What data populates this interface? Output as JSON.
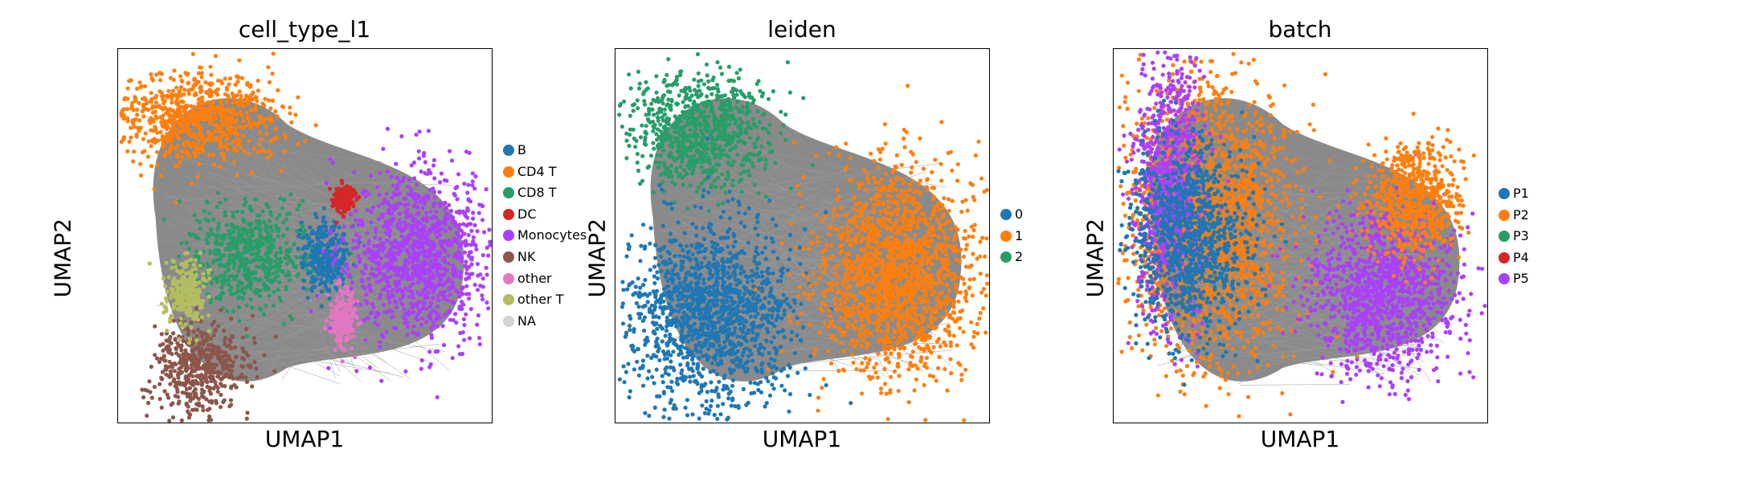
{
  "chart_data": [
    {
      "type": "scatter",
      "title": "cell_type_l1",
      "xlabel": "UMAP1",
      "ylabel": "UMAP2",
      "grid": false,
      "legend_position": "right",
      "categories": [
        "B",
        "CD4 T",
        "CD8 T",
        "DC",
        "Monocytes",
        "NK",
        "other",
        "other T",
        "NA"
      ],
      "colors": [
        "#1f77b4",
        "#ff7f0e",
        "#279e68",
        "#d62728",
        "#aa40fc",
        "#8c564b",
        "#e377c2",
        "#b5bd61",
        "#d3d3d3"
      ],
      "clusters": [
        {
          "category": "CD4 T",
          "center": [
            0.2,
            0.18
          ],
          "spread": [
            0.35,
            0.2
          ]
        },
        {
          "category": "CD8 T",
          "center": [
            0.35,
            0.55
          ],
          "spread": [
            0.25,
            0.2
          ]
        },
        {
          "category": "B",
          "center": [
            0.55,
            0.55
          ],
          "spread": [
            0.1,
            0.15
          ]
        },
        {
          "category": "Monocytes",
          "center": [
            0.8,
            0.55
          ],
          "spread": [
            0.3,
            0.35
          ]
        },
        {
          "category": "NK",
          "center": [
            0.22,
            0.85
          ],
          "spread": [
            0.2,
            0.2
          ]
        },
        {
          "category": "other T",
          "center": [
            0.18,
            0.65
          ],
          "spread": [
            0.08,
            0.15
          ]
        },
        {
          "category": "DC",
          "center": [
            0.6,
            0.4
          ],
          "spread": [
            0.05,
            0.05
          ]
        },
        {
          "category": "other",
          "center": [
            0.6,
            0.72
          ],
          "spread": [
            0.06,
            0.12
          ]
        }
      ]
    },
    {
      "type": "scatter",
      "title": "leiden",
      "xlabel": "UMAP1",
      "ylabel": "UMAP2",
      "grid": false,
      "legend_position": "right",
      "categories": [
        "0",
        "1",
        "2"
      ],
      "colors": [
        "#1f77b4",
        "#ff7f0e",
        "#279e68"
      ],
      "clusters": [
        {
          "category": "2",
          "center": [
            0.22,
            0.22
          ],
          "spread": [
            0.3,
            0.25
          ]
        },
        {
          "category": "0",
          "center": [
            0.25,
            0.72
          ],
          "spread": [
            0.35,
            0.4
          ]
        },
        {
          "category": "1",
          "center": [
            0.75,
            0.6
          ],
          "spread": [
            0.35,
            0.45
          ]
        }
      ]
    },
    {
      "type": "scatter",
      "title": "batch",
      "xlabel": "UMAP1",
      "ylabel": "UMAP2",
      "grid": false,
      "legend_position": "right",
      "categories": [
        "P1",
        "P2",
        "P3",
        "P4",
        "P5"
      ],
      "colors": [
        "#1f77b4",
        "#ff7f0e",
        "#279e68",
        "#d62728",
        "#aa40fc"
      ],
      "clusters": [
        {
          "category": "P2",
          "center": [
            0.25,
            0.45
          ],
          "spread": [
            0.35,
            0.6
          ]
        },
        {
          "category": "P5",
          "center": [
            0.15,
            0.35
          ],
          "spread": [
            0.15,
            0.55
          ]
        },
        {
          "category": "P5",
          "center": [
            0.72,
            0.65
          ],
          "spread": [
            0.3,
            0.35
          ]
        },
        {
          "category": "P2",
          "center": [
            0.8,
            0.4
          ],
          "spread": [
            0.2,
            0.25
          ]
        },
        {
          "category": "P1",
          "center": [
            0.2,
            0.5
          ],
          "spread": [
            0.25,
            0.4
          ]
        }
      ]
    }
  ]
}
